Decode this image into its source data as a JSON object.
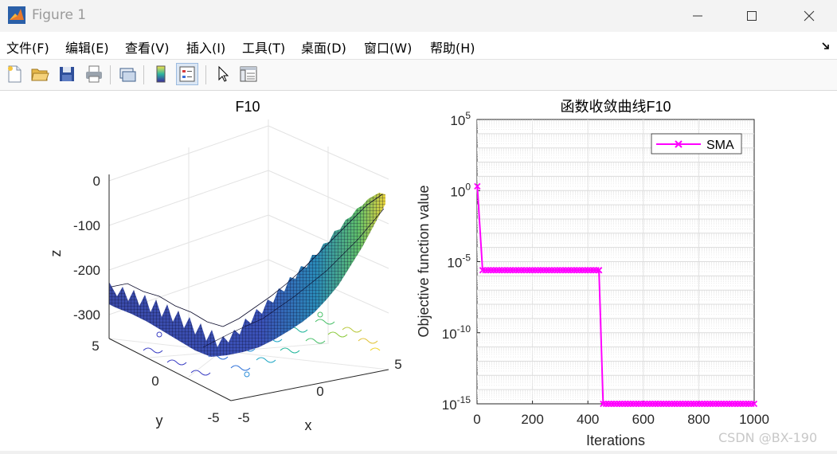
{
  "window": {
    "title": "Figure 1"
  },
  "menu": {
    "items": [
      "文件(F)",
      "编辑(E)",
      "查看(V)",
      "插入(I)",
      "工具(T)",
      "桌面(D)",
      "窗口(W)",
      "帮助(H)"
    ]
  },
  "toolbar": {
    "icons": [
      "new-figure-icon",
      "open-file-icon",
      "save-icon",
      "print-icon",
      "link-plot-icon",
      "colorbar-icon",
      "legend-icon",
      "pointer-icon",
      "property-inspector-icon"
    ]
  },
  "left_plot": {
    "title": "F10",
    "xlabel": "x",
    "ylabel": "y",
    "zlabel": "z",
    "z_ticks": [
      "0",
      "-100",
      "-200",
      "-300"
    ],
    "y_ticks": [
      "5",
      "0",
      "-5"
    ],
    "x_ticks": [
      "-5",
      "0",
      "5"
    ]
  },
  "chart_data": {
    "type": "line",
    "title": "函数收敛曲线F10",
    "xlabel": "Iterations",
    "ylabel": "Objective function value",
    "x_ticks": [
      "0",
      "200",
      "400",
      "600",
      "800",
      "1000"
    ],
    "y_tick_base": "10",
    "y_tick_exponents": [
      "5",
      "0",
      "-5",
      "-10",
      "-15"
    ],
    "xlim": [
      0,
      1000
    ],
    "ylim_log10": [
      -15,
      5
    ],
    "yscale": "log",
    "grid": true,
    "legend_position": "top-right",
    "series": [
      {
        "name": "SMA",
        "color": "#ff00ff",
        "marker": "x",
        "points": [
          {
            "x": 1,
            "y_log10": 0.3
          },
          {
            "x": 20,
            "y_log10": -5.6
          },
          {
            "x": 440,
            "y_log10": -5.6
          },
          {
            "x": 455,
            "y_log10": -15
          },
          {
            "x": 1000,
            "y_log10": -15
          }
        ]
      }
    ]
  },
  "watermark": "CSDN @BX-190"
}
